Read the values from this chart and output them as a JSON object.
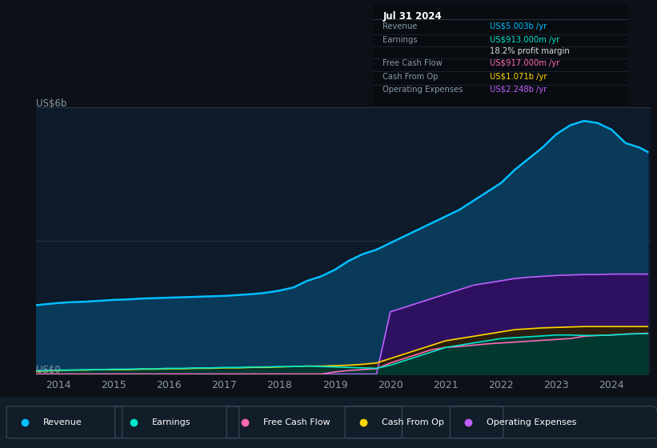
{
  "background_color": "#0d1117",
  "plot_bg_color": "#0d1a2a",
  "title_box_date": "Jul 31 2024",
  "title_box_rows": [
    {
      "label": "Revenue",
      "value": "US$5.003b /yr",
      "value_color": "#00bfff"
    },
    {
      "label": "Earnings",
      "value": "US$913.000m /yr",
      "value_color": "#00e5cc"
    },
    {
      "label": "",
      "value": "18.2% profit margin",
      "value_color": "#dddddd"
    },
    {
      "label": "Free Cash Flow",
      "value": "US$917.000m /yr",
      "value_color": "#ff69b4"
    },
    {
      "label": "Cash From Op",
      "value": "US$1.071b /yr",
      "value_color": "#ffd700"
    },
    {
      "label": "Operating Expenses",
      "value": "US$2.248b /yr",
      "value_color": "#bf5fff"
    }
  ],
  "y_label": "US$6b",
  "y_zero_label": "US$0",
  "x_ticks": [
    2014,
    2015,
    2016,
    2017,
    2018,
    2019,
    2020,
    2021,
    2022,
    2023,
    2024
  ],
  "years": [
    2013.6,
    2013.75,
    2014.0,
    2014.25,
    2014.5,
    2014.75,
    2015.0,
    2015.25,
    2015.5,
    2015.75,
    2016.0,
    2016.25,
    2016.5,
    2016.75,
    2017.0,
    2017.25,
    2017.5,
    2017.75,
    2018.0,
    2018.25,
    2018.5,
    2018.75,
    2019.0,
    2019.25,
    2019.5,
    2019.75,
    2020.0,
    2020.25,
    2020.5,
    2020.75,
    2021.0,
    2021.25,
    2021.5,
    2021.75,
    2022.0,
    2022.25,
    2022.5,
    2022.75,
    2023.0,
    2023.25,
    2023.5,
    2023.75,
    2024.0,
    2024.25,
    2024.5,
    2024.65
  ],
  "revenue": [
    1.55,
    1.57,
    1.6,
    1.62,
    1.63,
    1.65,
    1.67,
    1.68,
    1.7,
    1.71,
    1.72,
    1.73,
    1.74,
    1.75,
    1.76,
    1.78,
    1.8,
    1.83,
    1.88,
    1.95,
    2.1,
    2.2,
    2.35,
    2.55,
    2.7,
    2.8,
    2.95,
    3.1,
    3.25,
    3.4,
    3.55,
    3.7,
    3.9,
    4.1,
    4.3,
    4.6,
    4.85,
    5.1,
    5.4,
    5.6,
    5.7,
    5.65,
    5.5,
    5.2,
    5.1,
    5.0
  ],
  "earnings": [
    0.08,
    0.08,
    0.09,
    0.09,
    0.1,
    0.1,
    0.11,
    0.11,
    0.12,
    0.12,
    0.13,
    0.13,
    0.14,
    0.14,
    0.15,
    0.15,
    0.16,
    0.16,
    0.17,
    0.17,
    0.18,
    0.17,
    0.16,
    0.15,
    0.14,
    0.13,
    0.2,
    0.3,
    0.4,
    0.5,
    0.6,
    0.65,
    0.7,
    0.75,
    0.8,
    0.82,
    0.84,
    0.86,
    0.88,
    0.88,
    0.87,
    0.87,
    0.88,
    0.9,
    0.91,
    0.91
  ],
  "free_cash_flow": [
    0.0,
    0.0,
    0.0,
    0.0,
    0.0,
    0.0,
    0.0,
    0.0,
    0.0,
    0.0,
    0.0,
    0.0,
    0.0,
    0.0,
    0.0,
    0.0,
    0.0,
    0.0,
    0.0,
    0.0,
    0.0,
    0.0,
    0.05,
    0.08,
    0.1,
    0.12,
    0.25,
    0.35,
    0.45,
    0.55,
    0.6,
    0.62,
    0.65,
    0.68,
    0.7,
    0.72,
    0.74,
    0.76,
    0.78,
    0.8,
    0.85,
    0.87,
    0.88,
    0.9,
    0.91,
    0.92
  ],
  "cash_from_op": [
    0.06,
    0.07,
    0.08,
    0.09,
    0.09,
    0.1,
    0.1,
    0.1,
    0.11,
    0.11,
    0.12,
    0.12,
    0.13,
    0.13,
    0.14,
    0.14,
    0.15,
    0.15,
    0.16,
    0.17,
    0.18,
    0.18,
    0.19,
    0.2,
    0.22,
    0.25,
    0.35,
    0.45,
    0.55,
    0.65,
    0.75,
    0.8,
    0.85,
    0.9,
    0.95,
    1.0,
    1.02,
    1.04,
    1.05,
    1.06,
    1.07,
    1.07,
    1.07,
    1.07,
    1.07,
    1.07
  ],
  "operating_expenses": [
    0.0,
    0.0,
    0.0,
    0.0,
    0.0,
    0.0,
    0.0,
    0.0,
    0.0,
    0.0,
    0.0,
    0.0,
    0.0,
    0.0,
    0.0,
    0.0,
    0.0,
    0.0,
    0.0,
    0.0,
    0.0,
    0.0,
    0.0,
    0.0,
    0.0,
    0.0,
    1.4,
    1.5,
    1.6,
    1.7,
    1.8,
    1.9,
    2.0,
    2.05,
    2.1,
    2.15,
    2.18,
    2.2,
    2.22,
    2.23,
    2.24,
    2.24,
    2.25,
    2.25,
    2.25,
    2.25
  ],
  "revenue_color": "#00bfff",
  "revenue_fill": "#0a3a5a",
  "earnings_color": "#00e5cc",
  "earnings_fill": "#003830",
  "free_cash_flow_color": "#ff69b4",
  "free_cash_flow_fill": "#4a1535",
  "cash_from_op_color": "#ffd700",
  "cash_from_op_fill": "#2d2200",
  "operating_expenses_color": "#bf5fff",
  "operating_expenses_fill": "#2e1060",
  "legend_items": [
    {
      "label": "Revenue",
      "color": "#00bfff"
    },
    {
      "label": "Earnings",
      "color": "#00e5cc"
    },
    {
      "label": "Free Cash Flow",
      "color": "#ff69b4"
    },
    {
      "label": "Cash From Op",
      "color": "#ffd700"
    },
    {
      "label": "Operating Expenses",
      "color": "#bf5fff"
    }
  ]
}
